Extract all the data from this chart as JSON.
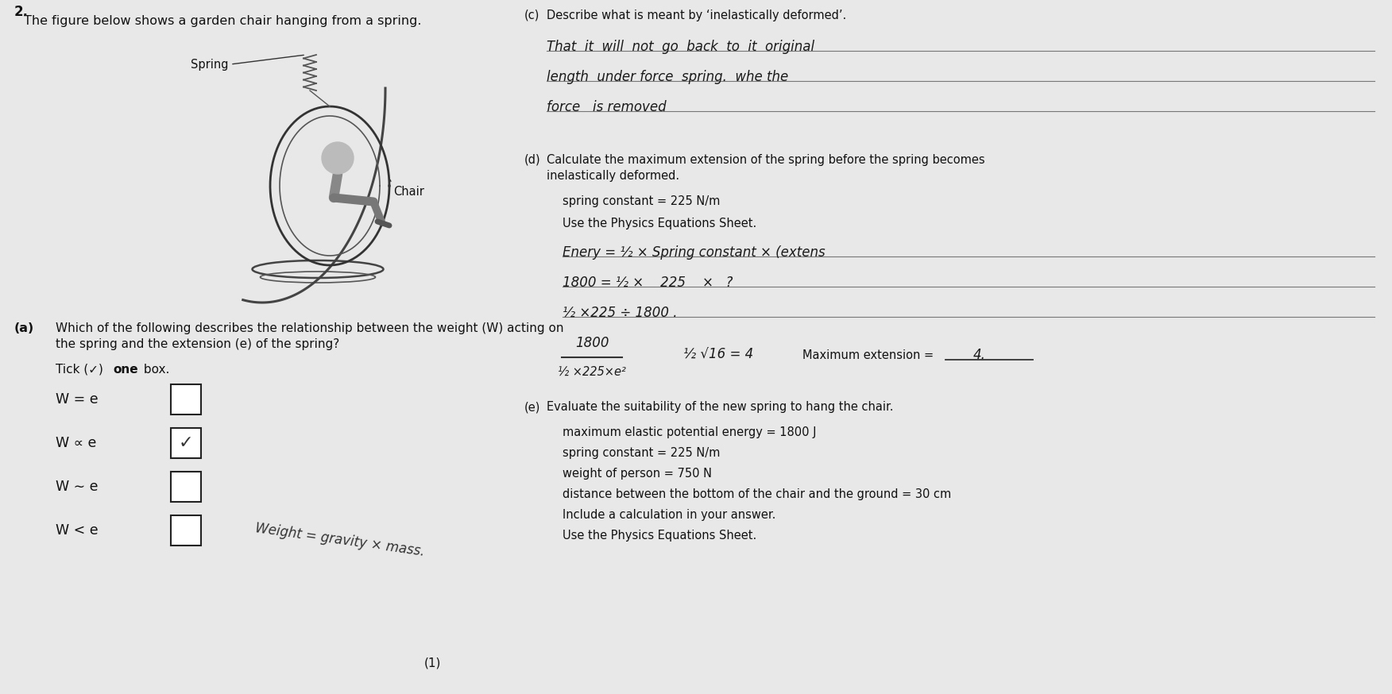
{
  "bg_color": "#e8e8e8",
  "text_color": "#111111",
  "question_number": "2.",
  "intro_text": "The figure below shows a garden chair hanging from a spring.",
  "spring_label": "Spring",
  "chair_label": "Chair",
  "part_a_label": "(a)",
  "part_a_question1": "Which of the following describes the relationship between the weight (W) acting on",
  "part_a_question2": "the spring and the extension (e) of the spring?",
  "tick_instruction_normal": "Tick (",
  "tick_instruction_tick": "✓",
  "tick_instruction_bold": ") one box.",
  "tick_one": "one",
  "options": [
    "W = e",
    "W ∝ e",
    "W ∼ e",
    "W < e"
  ],
  "ticked_option": 1,
  "handwritten_bottom": "Weight = gravity × mass.",
  "mark_1": "(1)",
  "part_c_label": "(c)",
  "part_c_question": "Describe what is meant by ‘inelastically deformed’.",
  "part_c_hw1": "That  it  will  not  go  back  to  it  original",
  "part_c_hw2": "length  under force  spring.  whe the",
  "part_c_hw3": "force   is removed",
  "part_d_label": "(d)",
  "part_d_q1": "Calculate the maximum extension of the spring before the spring becomes",
  "part_d_q2": "inelastically deformed.",
  "part_d_info1": "spring constant = 225 N/m",
  "part_d_info2": "Use the Physics Equations Sheet.",
  "part_d_hw1": "Enery = ½ × Spring constant × (extens",
  "part_d_hw2": "1800 = ½ ×    225    ×   ?",
  "part_d_hw3": "½ ×225 ÷ 1800 .",
  "part_d_frac_num": "1800",
  "part_d_frac_den": "½ ×225×e²",
  "part_d_right": "½ √16 = 4",
  "part_d_maxext_label": "Maximum extension =",
  "part_d_maxext_value": "4.",
  "part_e_label": "(e)",
  "part_e_question": "Evaluate the suitability of the new spring to hang the chair.",
  "part_e_info1": "maximum elastic potential energy = 1800 J",
  "part_e_info2": "spring constant = 225 N/m",
  "part_e_info3": "weight of person = 750 N",
  "part_e_info4": "distance between the bottom of the chair and the ground = 30 cm",
  "part_e_inst1": "Include a calculation in your answer.",
  "part_e_inst2": "Use the Physics Equations Sheet."
}
